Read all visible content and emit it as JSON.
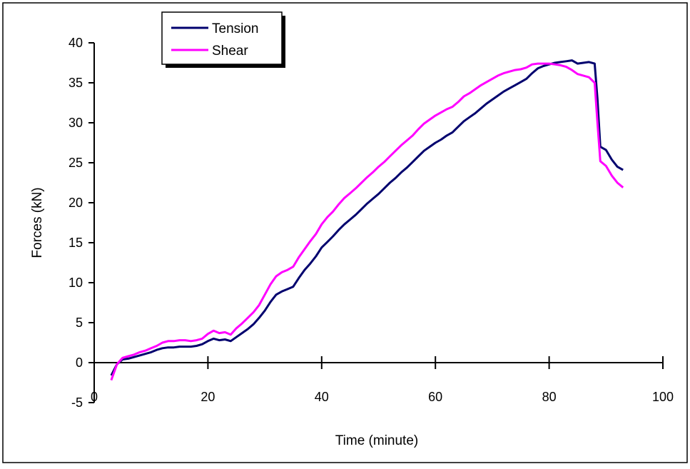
{
  "chart_data": {
    "type": "line",
    "xlabel": "Time (minute)",
    "ylabel": "Forces (kN)",
    "xlim": [
      0,
      100
    ],
    "ylim": [
      -5,
      40
    ],
    "x_ticks": [
      "0",
      "20",
      "40",
      "60",
      "80",
      "100"
    ],
    "y_ticks": [
      "-5",
      "0",
      "5",
      "10",
      "15",
      "20",
      "25",
      "30",
      "35",
      "40"
    ],
    "grid": false,
    "legend_position": "top-left",
    "series": [
      {
        "name": "Tension",
        "color": "#00006e",
        "points": [
          [
            3,
            -1.6
          ],
          [
            4,
            -0.2
          ],
          [
            5,
            0.4
          ],
          [
            6,
            0.5
          ],
          [
            7,
            0.7
          ],
          [
            8,
            0.9
          ],
          [
            9,
            1.1
          ],
          [
            10,
            1.3
          ],
          [
            11,
            1.6
          ],
          [
            12,
            1.8
          ],
          [
            13,
            1.9
          ],
          [
            14,
            1.9
          ],
          [
            15,
            2.0
          ],
          [
            16,
            2.0
          ],
          [
            17,
            2.0
          ],
          [
            18,
            2.1
          ],
          [
            19,
            2.3
          ],
          [
            20,
            2.7
          ],
          [
            21,
            3.0
          ],
          [
            22,
            2.8
          ],
          [
            23,
            2.9
          ],
          [
            24,
            2.7
          ],
          [
            25,
            3.2
          ],
          [
            26,
            3.7
          ],
          [
            27,
            4.2
          ],
          [
            28,
            4.8
          ],
          [
            29,
            5.6
          ],
          [
            30,
            6.5
          ],
          [
            31,
            7.6
          ],
          [
            32,
            8.5
          ],
          [
            33,
            8.9
          ],
          [
            34,
            9.2
          ],
          [
            35,
            9.5
          ],
          [
            36,
            10.6
          ],
          [
            37,
            11.6
          ],
          [
            38,
            12.4
          ],
          [
            39,
            13.3
          ],
          [
            40,
            14.4
          ],
          [
            41,
            15.1
          ],
          [
            42,
            15.8
          ],
          [
            43,
            16.6
          ],
          [
            44,
            17.3
          ],
          [
            45,
            17.9
          ],
          [
            46,
            18.5
          ],
          [
            47,
            19.2
          ],
          [
            48,
            19.9
          ],
          [
            49,
            20.5
          ],
          [
            50,
            21.1
          ],
          [
            51,
            21.8
          ],
          [
            52,
            22.5
          ],
          [
            53,
            23.1
          ],
          [
            54,
            23.8
          ],
          [
            55,
            24.4
          ],
          [
            56,
            25.1
          ],
          [
            57,
            25.8
          ],
          [
            58,
            26.5
          ],
          [
            59,
            27.0
          ],
          [
            60,
            27.5
          ],
          [
            61,
            27.9
          ],
          [
            62,
            28.4
          ],
          [
            63,
            28.8
          ],
          [
            64,
            29.5
          ],
          [
            65,
            30.2
          ],
          [
            66,
            30.7
          ],
          [
            67,
            31.2
          ],
          [
            68,
            31.8
          ],
          [
            69,
            32.4
          ],
          [
            70,
            32.9
          ],
          [
            71,
            33.4
          ],
          [
            72,
            33.9
          ],
          [
            73,
            34.3
          ],
          [
            74,
            34.7
          ],
          [
            75,
            35.1
          ],
          [
            76,
            35.5
          ],
          [
            77,
            36.2
          ],
          [
            78,
            36.8
          ],
          [
            79,
            37.1
          ],
          [
            80,
            37.3
          ],
          [
            81,
            37.5
          ],
          [
            82,
            37.6
          ],
          [
            83,
            37.7
          ],
          [
            84,
            37.8
          ],
          [
            85,
            37.4
          ],
          [
            86,
            37.5
          ],
          [
            87,
            37.6
          ],
          [
            88,
            37.4
          ],
          [
            88.5,
            33
          ],
          [
            89,
            27.0
          ],
          [
            90,
            26.6
          ],
          [
            91,
            25.4
          ],
          [
            92,
            24.5
          ],
          [
            93,
            24.1
          ]
        ]
      },
      {
        "name": "Shear",
        "color": "#ff00ff",
        "points": [
          [
            3,
            -2.2
          ],
          [
            4,
            -0.2
          ],
          [
            5,
            0.6
          ],
          [
            6,
            0.8
          ],
          [
            7,
            1.0
          ],
          [
            8,
            1.3
          ],
          [
            9,
            1.5
          ],
          [
            10,
            1.8
          ],
          [
            11,
            2.1
          ],
          [
            12,
            2.5
          ],
          [
            13,
            2.7
          ],
          [
            14,
            2.7
          ],
          [
            15,
            2.8
          ],
          [
            16,
            2.8
          ],
          [
            17,
            2.7
          ],
          [
            18,
            2.8
          ],
          [
            19,
            3.0
          ],
          [
            20,
            3.6
          ],
          [
            21,
            4.0
          ],
          [
            22,
            3.7
          ],
          [
            23,
            3.8
          ],
          [
            24,
            3.5
          ],
          [
            25,
            4.3
          ],
          [
            26,
            4.9
          ],
          [
            27,
            5.6
          ],
          [
            28,
            6.3
          ],
          [
            29,
            7.2
          ],
          [
            30,
            8.5
          ],
          [
            31,
            9.8
          ],
          [
            32,
            10.8
          ],
          [
            33,
            11.3
          ],
          [
            34,
            11.6
          ],
          [
            35,
            12.0
          ],
          [
            36,
            13.2
          ],
          [
            37,
            14.2
          ],
          [
            38,
            15.2
          ],
          [
            39,
            16.1
          ],
          [
            40,
            17.3
          ],
          [
            41,
            18.2
          ],
          [
            42,
            18.9
          ],
          [
            43,
            19.8
          ],
          [
            44,
            20.6
          ],
          [
            45,
            21.2
          ],
          [
            46,
            21.8
          ],
          [
            47,
            22.5
          ],
          [
            48,
            23.2
          ],
          [
            49,
            23.8
          ],
          [
            50,
            24.5
          ],
          [
            51,
            25.1
          ],
          [
            52,
            25.8
          ],
          [
            53,
            26.5
          ],
          [
            54,
            27.2
          ],
          [
            55,
            27.8
          ],
          [
            56,
            28.4
          ],
          [
            57,
            29.2
          ],
          [
            58,
            29.9
          ],
          [
            59,
            30.4
          ],
          [
            60,
            30.9
          ],
          [
            61,
            31.3
          ],
          [
            62,
            31.7
          ],
          [
            63,
            32.0
          ],
          [
            64,
            32.6
          ],
          [
            65,
            33.3
          ],
          [
            66,
            33.7
          ],
          [
            67,
            34.2
          ],
          [
            68,
            34.7
          ],
          [
            69,
            35.1
          ],
          [
            70,
            35.5
          ],
          [
            71,
            35.9
          ],
          [
            72,
            36.2
          ],
          [
            73,
            36.4
          ],
          [
            74,
            36.6
          ],
          [
            75,
            36.7
          ],
          [
            76,
            36.9
          ],
          [
            77,
            37.3
          ],
          [
            78,
            37.4
          ],
          [
            79,
            37.4
          ],
          [
            80,
            37.4
          ],
          [
            81,
            37.3
          ],
          [
            82,
            37.2
          ],
          [
            83,
            37.0
          ],
          [
            84,
            36.6
          ],
          [
            85,
            36.1
          ],
          [
            86,
            35.9
          ],
          [
            87,
            35.7
          ],
          [
            88,
            35.0
          ],
          [
            88.5,
            30
          ],
          [
            89,
            25.2
          ],
          [
            90,
            24.6
          ],
          [
            91,
            23.4
          ],
          [
            92,
            22.5
          ],
          [
            93,
            21.9
          ]
        ]
      }
    ]
  }
}
